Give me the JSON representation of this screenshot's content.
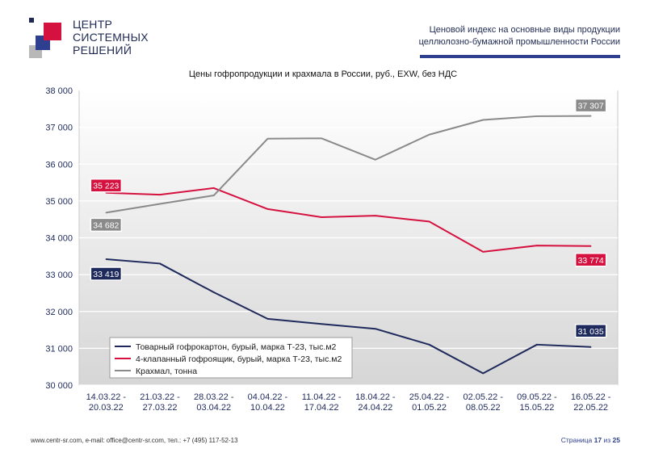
{
  "header": {
    "logo_lines": [
      "ЦЕНТР",
      "СИСТЕМНЫХ",
      "РЕШЕНИЙ"
    ],
    "title_line1": "Ценовой индекс на основные виды продукции",
    "title_line2": "целлюлозно-бумажной промышленности России"
  },
  "colors": {
    "navy": "#1f2a5c",
    "red": "#d5123f",
    "gray": "#8a8a8a",
    "accent_rule": "#2e3f8f"
  },
  "chart_data": {
    "type": "line",
    "title": "Цены гофропродукции и крахмала в России, руб., EXW, без НДС",
    "categories": [
      [
        "14.03.22 -",
        "20.03.22"
      ],
      [
        "21.03.22 -",
        "27.03.22"
      ],
      [
        "28.03.22 -",
        "03.04.22"
      ],
      [
        "04.04.22 -",
        "10.04.22"
      ],
      [
        "11.04.22 -",
        "17.04.22"
      ],
      [
        "18.04.22 -",
        "24.04.22"
      ],
      [
        "25.04.22 -",
        "01.05.22"
      ],
      [
        "02.05.22 -",
        "08.05.22"
      ],
      [
        "09.05.22 -",
        "15.05.22"
      ],
      [
        "16.05.22 -",
        "22.05.22"
      ]
    ],
    "ylim": [
      30000,
      38000
    ],
    "yticks": [
      30000,
      31000,
      32000,
      33000,
      34000,
      35000,
      36000,
      37000,
      38000
    ],
    "ytick_labels": [
      "30 000",
      "31 000",
      "32 000",
      "33 000",
      "34 000",
      "35 000",
      "36 000",
      "37 000",
      "38 000"
    ],
    "grid": true,
    "legend_position": "bottom-left",
    "series": [
      {
        "name": "Товарный гофрокартон, бурый, марка Т-23, тыс.м2",
        "color": "#1f2a5c",
        "values": [
          33419,
          33300,
          32520,
          31800,
          31660,
          31530,
          31100,
          30320,
          31100,
          31035
        ],
        "first_label": "33 419",
        "last_label": "31 035"
      },
      {
        "name": "4-клапанный гофроящик, бурый, марка Т-23, тыс.м2",
        "color": "#d5123f",
        "values": [
          35223,
          35170,
          35350,
          34780,
          34560,
          34600,
          34440,
          33620,
          33790,
          33774
        ],
        "first_label": "35 223",
        "last_label": "33 774"
      },
      {
        "name": "Крахмал, тонна",
        "color": "#8a8a8a",
        "values": [
          34682,
          34920,
          35150,
          36690,
          36700,
          36120,
          36800,
          37200,
          37300,
          37307
        ],
        "first_label": "34 682",
        "last_label": "37 307"
      }
    ]
  },
  "footer": {
    "contacts": "www.centr-sr.com, e-mail: office@centr-sr.com, тел.: +7 (495) 117-52-13",
    "page_word": "Страница",
    "page_num": "17",
    "page_of": "из",
    "page_total": "25"
  }
}
